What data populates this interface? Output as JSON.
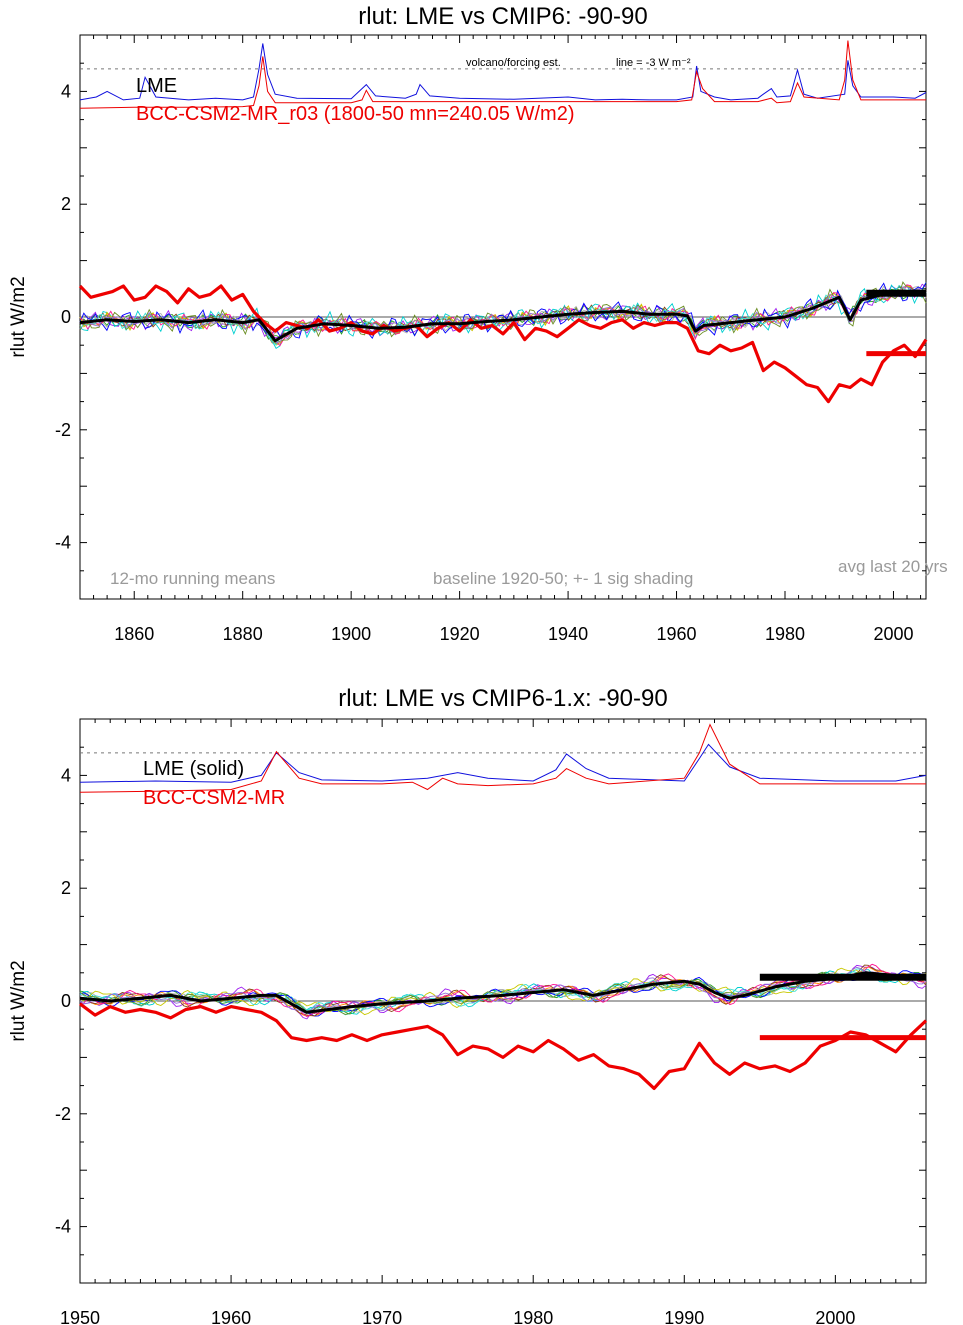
{
  "chart_data": [
    {
      "type": "line",
      "title": "rlut: LME vs CMIP6: -90-90",
      "ylabel": "rlut W/m2",
      "xlim": [
        1850,
        2006
      ],
      "ylim": [
        -5,
        5
      ],
      "xticks": [
        1860,
        1880,
        1900,
        1920,
        1940,
        1960,
        1980,
        2000
      ],
      "yticks": [
        -4,
        -2,
        0,
        2,
        4
      ],
      "annotations": {
        "volcano": "volcano/forcing est.",
        "line": "line = -3 W m⁻²",
        "left": "12-mo running means",
        "middle": "baseline 1920-50; +- 1 sig shading",
        "right": "avg last 20 yrs"
      },
      "legend": [
        {
          "name": "LME",
          "color": "#000000"
        },
        {
          "name": "BCC-CSM2-MR_r03 (1800-50 mn=240.05 W/m2)",
          "color": "#ee0000"
        }
      ],
      "forcing_ref_y": 4.4,
      "forcing_lme": {
        "x": [
          1850,
          1853,
          1855,
          1858,
          1861,
          1862,
          1864,
          1870,
          1875,
          1880,
          1882,
          1883,
          1883.7,
          1884.6,
          1886,
          1890,
          1900,
          1902,
          1902.8,
          1904.5,
          1910,
          1912,
          1912.7,
          1914.5,
          1920,
          1930,
          1940,
          1945,
          1950,
          1955,
          1960,
          1963,
          1963.7,
          1964.5,
          1967,
          1970,
          1975,
          1976,
          1977.5,
          1978.5,
          1981,
          1982.3,
          1983.5,
          1986,
          1991,
          1991.6,
          1992.5,
          1994,
          2000,
          2004,
          2006
        ],
        "y": [
          3.85,
          3.9,
          4.0,
          3.85,
          3.88,
          4.25,
          3.9,
          3.85,
          3.88,
          3.85,
          3.9,
          4.4,
          4.85,
          4.3,
          3.95,
          3.88,
          3.87,
          4.05,
          4.12,
          3.92,
          3.88,
          3.95,
          4.12,
          3.92,
          3.88,
          3.86,
          3.9,
          3.85,
          3.86,
          3.85,
          3.85,
          3.9,
          4.45,
          4.0,
          3.9,
          3.85,
          3.88,
          3.95,
          4.05,
          3.9,
          3.92,
          4.38,
          3.95,
          3.88,
          3.95,
          4.55,
          4.1,
          3.9,
          3.9,
          3.88,
          3.98
        ]
      },
      "forcing_model": {
        "x": [
          1850,
          1860,
          1870,
          1880,
          1882,
          1883,
          1883.7,
          1884.6,
          1886,
          1900,
          1902,
          1902.8,
          1904,
          1910,
          1920,
          1940,
          1960,
          1962.8,
          1963.7,
          1964.8,
          1967,
          1975,
          1977.5,
          1978.5,
          1981,
          1982.3,
          1983.5,
          1990,
          1991,
          1991.6,
          1992.5,
          1994,
          2006
        ],
        "y": [
          3.7,
          3.72,
          3.72,
          3.73,
          3.75,
          4.1,
          4.62,
          4.0,
          3.8,
          3.8,
          3.85,
          4.02,
          3.82,
          3.82,
          3.82,
          3.82,
          3.82,
          3.85,
          4.35,
          4.05,
          3.82,
          3.82,
          3.88,
          3.8,
          3.82,
          4.15,
          3.9,
          3.85,
          4.2,
          4.9,
          4.2,
          3.85,
          3.85
        ]
      },
      "lme_ensemble_mean": {
        "x": [
          1850,
          1855,
          1860,
          1865,
          1870,
          1875,
          1880,
          1883,
          1886,
          1890,
          1895,
          1900,
          1905,
          1910,
          1915,
          1920,
          1925,
          1930,
          1935,
          1940,
          1945,
          1950,
          1955,
          1960,
          1962,
          1963.5,
          1965,
          1970,
          1975,
          1980,
          1985,
          1990,
          1992,
          1994,
          1998,
          2002,
          2006
        ],
        "y": [
          -0.1,
          -0.05,
          -0.08,
          -0.05,
          -0.1,
          -0.05,
          -0.1,
          -0.05,
          -0.42,
          -0.2,
          -0.12,
          -0.15,
          -0.2,
          -0.18,
          -0.12,
          -0.12,
          -0.08,
          -0.05,
          0.0,
          0.05,
          0.08,
          0.1,
          0.05,
          0.05,
          0.02,
          -0.25,
          -0.15,
          -0.1,
          -0.05,
          0.0,
          0.15,
          0.35,
          -0.05,
          0.3,
          0.4,
          0.45,
          0.45
        ]
      },
      "model_series": {
        "x": [
          1850,
          1852,
          1854,
          1856,
          1858,
          1860,
          1862,
          1864,
          1866,
          1868,
          1870,
          1872,
          1874,
          1876,
          1878,
          1880,
          1882,
          1884,
          1886,
          1888,
          1890,
          1892,
          1894,
          1896,
          1898,
          1900,
          1902,
          1904,
          1906,
          1908,
          1910,
          1912,
          1914,
          1916,
          1918,
          1920,
          1922,
          1924,
          1926,
          1928,
          1930,
          1932,
          1934,
          1936,
          1938,
          1940,
          1942,
          1944,
          1946,
          1948,
          1950,
          1952,
          1954,
          1956,
          1958,
          1960,
          1962,
          1964,
          1966,
          1968,
          1970,
          1972,
          1974,
          1976,
          1978,
          1980,
          1982,
          1984,
          1986,
          1988,
          1990,
          1992,
          1994,
          1996,
          1998,
          2000,
          2002,
          2004,
          2006
        ],
        "y": [
          0.55,
          0.35,
          0.4,
          0.45,
          0.55,
          0.3,
          0.35,
          0.55,
          0.45,
          0.25,
          0.5,
          0.35,
          0.4,
          0.55,
          0.3,
          0.4,
          0.1,
          -0.1,
          -0.25,
          -0.1,
          -0.15,
          -0.2,
          -0.05,
          -0.25,
          -0.2,
          -0.1,
          -0.25,
          -0.3,
          -0.15,
          -0.25,
          -0.2,
          -0.15,
          -0.35,
          -0.2,
          -0.1,
          -0.25,
          -0.05,
          -0.2,
          -0.15,
          -0.3,
          -0.1,
          -0.4,
          -0.2,
          -0.25,
          -0.35,
          -0.2,
          -0.05,
          -0.15,
          -0.2,
          -0.1,
          -0.05,
          -0.2,
          -0.1,
          -0.15,
          -0.1,
          -0.1,
          -0.2,
          -0.6,
          -0.65,
          -0.5,
          -0.6,
          -0.55,
          -0.45,
          -0.95,
          -0.8,
          -0.9,
          -1.05,
          -1.2,
          -1.25,
          -1.5,
          -1.2,
          -1.25,
          -1.1,
          -1.2,
          -0.8,
          -0.6,
          -0.5,
          -0.7,
          -0.4
        ]
      },
      "avg_last_20": {
        "lme": 0.42,
        "model": -0.65,
        "x": [
          1995,
          2006
        ]
      },
      "member_colors": [
        "#1fa21f",
        "#a020f0",
        "#00cfd0",
        "#ff8c00",
        "#b0b0b0",
        "#0000ff",
        "#c8c800",
        "#8b4513",
        "#ff1493",
        "#40e0d0",
        "#6b8e23",
        "#9370db"
      ]
    },
    {
      "type": "line",
      "title": "rlut: LME vs CMIP6-1.x: -90-90",
      "ylabel": "rlut W/m2",
      "xlim": [
        1950,
        2006
      ],
      "ylim": [
        -5,
        5
      ],
      "xticks": [
        1950,
        1960,
        1970,
        1980,
        1990,
        2000
      ],
      "yticks": [
        -4,
        -2,
        0,
        2,
        4
      ],
      "legend": [
        {
          "name": "LME (solid)",
          "color": "#000000"
        },
        {
          "name": "BCC-CSM2-MR",
          "color": "#ee0000"
        }
      ],
      "forcing_ref_y": 4.4,
      "forcing_lme": {
        "x": [
          1950,
          1955,
          1960,
          1962,
          1963,
          1964.5,
          1966,
          1970,
          1973,
          1975,
          1977,
          1980,
          1981.5,
          1982.2,
          1983.5,
          1985,
          1990,
          1991,
          1991.6,
          1993,
          1995,
          2000,
          2004,
          2006
        ],
        "y": [
          3.88,
          3.9,
          3.88,
          4.0,
          4.4,
          4.05,
          3.92,
          3.9,
          3.95,
          4.05,
          3.95,
          3.9,
          4.1,
          4.38,
          4.12,
          3.95,
          3.9,
          4.3,
          4.55,
          4.15,
          3.95,
          3.9,
          3.9,
          4.0
        ]
      },
      "forcing_model": {
        "x": [
          1950,
          1955,
          1960,
          1962,
          1963,
          1964.5,
          1966,
          1970,
          1972,
          1973,
          1974,
          1975,
          1977,
          1980,
          1981.5,
          1982.2,
          1983.5,
          1985,
          1990,
          1991,
          1991.7,
          1993,
          1995,
          2000,
          2006
        ],
        "y": [
          3.7,
          3.72,
          3.75,
          3.9,
          4.42,
          3.95,
          3.85,
          3.85,
          3.88,
          3.75,
          3.95,
          3.85,
          3.82,
          3.85,
          3.95,
          4.12,
          3.95,
          3.85,
          3.95,
          4.4,
          4.9,
          4.2,
          3.85,
          3.85,
          3.85
        ]
      },
      "lme_ensemble_mean": {
        "x": [
          1950,
          1952,
          1954,
          1956,
          1958,
          1960,
          1962,
          1963,
          1965,
          1968,
          1970,
          1973,
          1975,
          1978,
          1980,
          1982,
          1984,
          1986,
          1988,
          1990,
          1991,
          1992,
          1993,
          1994,
          1996,
          1998,
          2000,
          2002,
          2004,
          2006
        ],
        "y": [
          0.05,
          0.0,
          0.05,
          0.1,
          0.0,
          0.05,
          0.1,
          0.1,
          -0.2,
          -0.1,
          -0.05,
          0.0,
          0.05,
          0.1,
          0.15,
          0.2,
          0.1,
          0.2,
          0.3,
          0.35,
          0.3,
          0.15,
          0.05,
          0.1,
          0.25,
          0.35,
          0.4,
          0.5,
          0.45,
          0.4
        ]
      },
      "model_series": {
        "x": [
          1950,
          1951,
          1952,
          1953,
          1954,
          1955,
          1956,
          1957,
          1958,
          1959,
          1960,
          1961,
          1962,
          1963,
          1964,
          1965,
          1966,
          1967,
          1968,
          1969,
          1970,
          1971,
          1972,
          1973,
          1974,
          1975,
          1976,
          1977,
          1978,
          1979,
          1980,
          1981,
          1982,
          1983,
          1984,
          1985,
          1986,
          1987,
          1988,
          1989,
          1990,
          1991,
          1992,
          1993,
          1994,
          1995,
          1996,
          1997,
          1998,
          1999,
          2000,
          2001,
          2002,
          2003,
          2004,
          2005,
          2006
        ],
        "y": [
          -0.05,
          -0.25,
          -0.1,
          -0.2,
          -0.15,
          -0.2,
          -0.3,
          -0.15,
          -0.1,
          -0.2,
          -0.1,
          -0.15,
          -0.2,
          -0.35,
          -0.65,
          -0.7,
          -0.65,
          -0.7,
          -0.6,
          -0.7,
          -0.6,
          -0.55,
          -0.5,
          -0.45,
          -0.6,
          -0.95,
          -0.8,
          -0.85,
          -1.0,
          -0.8,
          -0.9,
          -0.7,
          -0.85,
          -1.05,
          -0.95,
          -1.15,
          -1.2,
          -1.3,
          -1.55,
          -1.25,
          -1.2,
          -0.75,
          -1.1,
          -1.3,
          -1.1,
          -1.2,
          -1.15,
          -1.25,
          -1.1,
          -0.8,
          -0.7,
          -0.55,
          -0.6,
          -0.75,
          -0.9,
          -0.6,
          -0.35
        ]
      },
      "avg_last_20": {
        "lme": 0.42,
        "model": -0.65,
        "x": [
          1995,
          2006
        ]
      },
      "member_colors": [
        "#1fa21f",
        "#a020f0",
        "#00cfd0",
        "#ff8c00",
        "#b0b0b0",
        "#0000ff",
        "#c8c800",
        "#8b4513",
        "#ff1493",
        "#40e0d0",
        "#6b8e23",
        "#9370db"
      ]
    }
  ]
}
